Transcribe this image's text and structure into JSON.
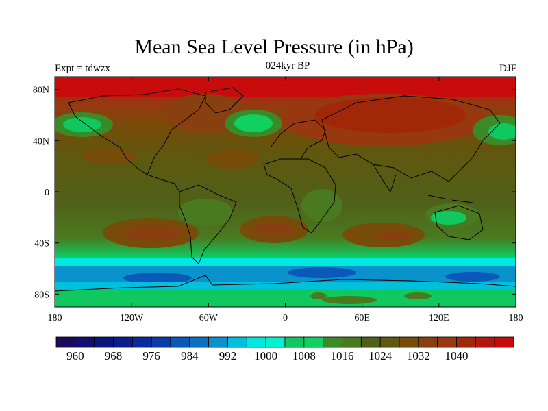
{
  "title": "Mean Sea Level Pressure (in hPa)",
  "expt_label": "Expt = tdwzx",
  "period_label": "024kyr BP",
  "season_label": "DJF",
  "axes": {
    "lon_ticks": [
      "180",
      "120W",
      "60W",
      "0",
      "60E",
      "120E",
      "180"
    ],
    "lat_ticks": [
      "80N",
      "40N",
      "0",
      "40S",
      "80S"
    ]
  },
  "colorbar": {
    "labels": [
      "960",
      "968",
      "976",
      "984",
      "992",
      "1000",
      "1008",
      "1016",
      "1024",
      "1032",
      "1040"
    ],
    "colors": [
      "#1a0a5a",
      "#120f6e",
      "#0b1580",
      "#0a1c8e",
      "#0b2a9c",
      "#0b3aaa",
      "#0a58b8",
      "#0a70c0",
      "#0a92cc",
      "#00c0dc",
      "#00e8e0",
      "#00f0d0",
      "#10c860",
      "#10d060",
      "#3a8a28",
      "#4a7a20",
      "#506018",
      "#5e5810",
      "#764c08",
      "#884010",
      "#983810",
      "#a02808",
      "#b01810",
      "#c80c0c"
    ]
  },
  "colors": {
    "high": "#b01810",
    "mid": "#506018",
    "low": "#0a58b8",
    "coast": "#000000"
  }
}
